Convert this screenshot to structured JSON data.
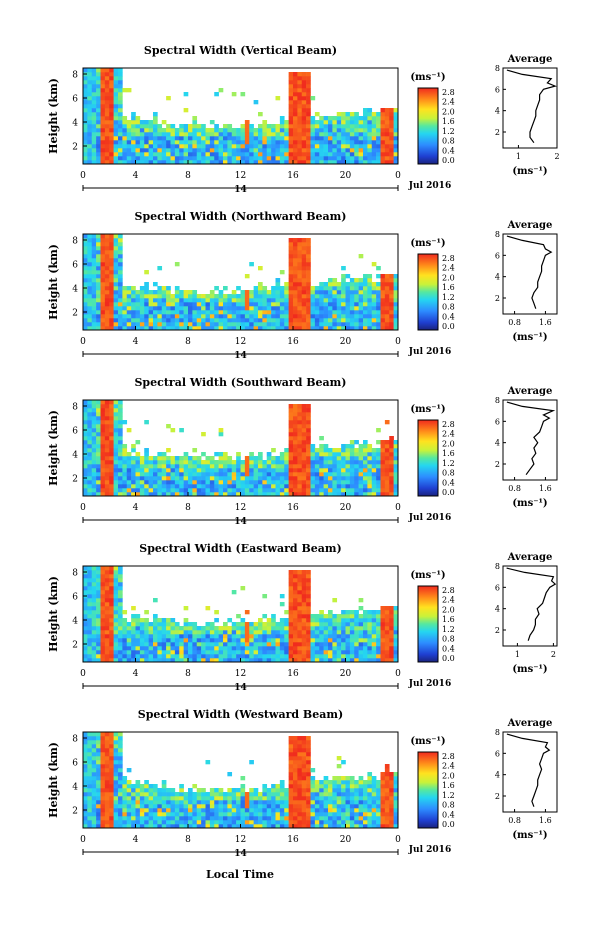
{
  "figure": {
    "xlabel_bottom": "Local Time",
    "date_label": "Jul 2016",
    "day_label": "14",
    "colorbar_unit": "(ms⁻¹)",
    "avg_title": "Average",
    "avg_xlabel": "(ms⁻¹)",
    "ylabel": "Height (km)"
  },
  "chart_data": [
    {
      "type": "heatmap",
      "title": "Spectral Width (Vertical Beam)",
      "xlabel": "",
      "ylabel": "Height (km)",
      "x_ticks": [
        "0",
        "4",
        "8",
        "12",
        "16",
        "20",
        "0"
      ],
      "y_ticks": [
        "8",
        "6",
        "4",
        "2"
      ],
      "colorbar_ticks": [
        "2.8",
        "2.4",
        "2.0",
        "1.6",
        "1.2",
        "0.8",
        "0.4",
        "0.0"
      ],
      "colorbar_unit": "(ms⁻¹)",
      "avg_profile": {
        "title": "Average",
        "x_ticks": [
          "1",
          "2"
        ],
        "xlim": [
          0.6,
          2.0
        ],
        "height_km": [
          1.0,
          1.5,
          2.0,
          2.5,
          3.0,
          3.5,
          4.0,
          4.5,
          5.0,
          5.5,
          6.0,
          6.3,
          6.6,
          7.0,
          7.4,
          7.8
        ],
        "width": [
          1.4,
          1.3,
          1.3,
          1.35,
          1.4,
          1.45,
          1.45,
          1.5,
          1.55,
          1.55,
          1.65,
          1.95,
          1.75,
          1.85,
          1.1,
          0.7
        ]
      }
    },
    {
      "type": "heatmap",
      "title": "Spectral Width (Northward Beam)",
      "xlabel": "",
      "ylabel": "Height (km)",
      "x_ticks": [
        "0",
        "4",
        "8",
        "12",
        "16",
        "20",
        "0"
      ],
      "y_ticks": [
        "8",
        "6",
        "4",
        "2"
      ],
      "colorbar_ticks": [
        "2.8",
        "2.4",
        "2.0",
        "1.6",
        "1.2",
        "0.8",
        "0.4",
        "0.0"
      ],
      "colorbar_unit": "(ms⁻¹)",
      "avg_profile": {
        "title": "Average",
        "x_ticks": [
          "0.8",
          "1.6"
        ],
        "xlim": [
          0.5,
          1.9
        ],
        "height_km": [
          1.0,
          1.5,
          2.0,
          2.5,
          3.0,
          3.5,
          4.0,
          4.5,
          5.0,
          5.5,
          6.0,
          6.3,
          6.6,
          7.0,
          7.4,
          7.8
        ],
        "width": [
          1.35,
          1.3,
          1.25,
          1.3,
          1.4,
          1.4,
          1.45,
          1.5,
          1.5,
          1.55,
          1.6,
          1.75,
          1.6,
          1.55,
          1.0,
          0.6
        ]
      }
    },
    {
      "type": "heatmap",
      "title": "Spectral Width (Southward Beam)",
      "xlabel": "",
      "ylabel": "Height (km)",
      "x_ticks": [
        "0",
        "4",
        "8",
        "12",
        "16",
        "20",
        "0"
      ],
      "y_ticks": [
        "8",
        "6",
        "4",
        "2"
      ],
      "colorbar_ticks": [
        "2.8",
        "2.4",
        "2.0",
        "1.6",
        "1.2",
        "0.8",
        "0.4",
        "0.0"
      ],
      "colorbar_unit": "(ms⁻¹)",
      "avg_profile": {
        "title": "Average",
        "x_ticks": [
          "0.8",
          "1.6"
        ],
        "xlim": [
          0.5,
          1.9
        ],
        "height_km": [
          1.0,
          1.5,
          2.0,
          2.5,
          3.0,
          3.5,
          4.0,
          4.5,
          5.0,
          5.5,
          6.0,
          6.3,
          6.6,
          7.0,
          7.4,
          7.8
        ],
        "width": [
          1.1,
          1.2,
          1.3,
          1.25,
          1.35,
          1.3,
          1.4,
          1.3,
          1.45,
          1.5,
          1.55,
          1.7,
          1.55,
          1.8,
          1.0,
          0.6
        ]
      }
    },
    {
      "type": "heatmap",
      "title": "Spectral Width (Eastward Beam)",
      "xlabel": "",
      "ylabel": "Height (km)",
      "x_ticks": [
        "0",
        "4",
        "8",
        "12",
        "16",
        "20",
        "0"
      ],
      "y_ticks": [
        "8",
        "6",
        "4",
        "2"
      ],
      "colorbar_ticks": [
        "2.8",
        "2.4",
        "2.0",
        "1.6",
        "1.2",
        "0.8",
        "0.4",
        "0.0"
      ],
      "colorbar_unit": "(ms⁻¹)",
      "avg_profile": {
        "title": "Average",
        "x_ticks": [
          "1",
          "2"
        ],
        "xlim": [
          0.6,
          2.1
        ],
        "height_km": [
          1.0,
          1.5,
          2.0,
          2.5,
          3.0,
          3.5,
          4.0,
          4.5,
          5.0,
          5.5,
          6.0,
          6.3,
          6.6,
          7.0,
          7.4,
          7.8
        ],
        "width": [
          1.3,
          1.35,
          1.45,
          1.5,
          1.5,
          1.6,
          1.55,
          1.7,
          1.75,
          1.8,
          1.9,
          2.05,
          1.95,
          2.0,
          1.2,
          0.7
        ]
      }
    },
    {
      "type": "heatmap",
      "title": "Spectral Width (Westward Beam)",
      "xlabel": "Local Time",
      "ylabel": "Height (km)",
      "x_ticks": [
        "0",
        "4",
        "8",
        "12",
        "16",
        "20",
        "0"
      ],
      "y_ticks": [
        "8",
        "6",
        "4",
        "2"
      ],
      "colorbar_ticks": [
        "2.8",
        "2.4",
        "2.0",
        "1.6",
        "1.2",
        "0.8",
        "0.4",
        "0.0"
      ],
      "colorbar_unit": "(ms⁻¹)",
      "avg_profile": {
        "title": "Average",
        "x_ticks": [
          "0.8",
          "1.6"
        ],
        "xlim": [
          0.5,
          1.9
        ],
        "height_km": [
          1.0,
          1.5,
          2.0,
          2.5,
          3.0,
          3.5,
          4.0,
          4.5,
          5.0,
          5.5,
          6.0,
          6.3,
          6.6,
          7.0,
          7.4,
          7.8
        ],
        "width": [
          1.3,
          1.25,
          1.3,
          1.35,
          1.4,
          1.4,
          1.45,
          1.5,
          1.45,
          1.5,
          1.55,
          1.7,
          1.6,
          1.65,
          1.0,
          0.6
        ]
      }
    }
  ]
}
